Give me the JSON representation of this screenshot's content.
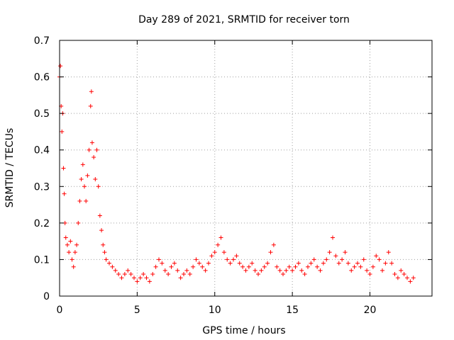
{
  "chart_data": {
    "type": "scatter",
    "title": "Day 289 of 2021, SRMTID for receiver torn",
    "xlabel": "GPS time / hours",
    "ylabel": "SRMTID / TECUs",
    "xlim": [
      0,
      24
    ],
    "ylim": [
      0,
      0.7
    ],
    "xticks": [
      0,
      5,
      10,
      15,
      20
    ],
    "yticks": [
      0,
      0.1,
      0.2,
      0.3,
      0.4,
      0.5,
      0.6,
      0.7
    ],
    "grid": true,
    "marker": "plus",
    "color": "#ff0000",
    "series": [
      {
        "name": "SRMTID",
        "x": [
          0.0,
          0.05,
          0.1,
          0.15,
          0.2,
          0.25,
          0.3,
          0.35,
          0.4,
          0.5,
          0.6,
          0.7,
          0.8,
          0.9,
          1.0,
          1.1,
          1.2,
          1.3,
          1.4,
          1.5,
          1.6,
          1.7,
          1.8,
          1.9,
          2.0,
          2.05,
          2.1,
          2.2,
          2.3,
          2.4,
          2.5,
          2.6,
          2.7,
          2.8,
          2.9,
          3.0,
          3.2,
          3.4,
          3.6,
          3.8,
          4.0,
          4.2,
          4.4,
          4.6,
          4.8,
          5.0,
          5.2,
          5.4,
          5.6,
          5.8,
          6.0,
          6.2,
          6.4,
          6.6,
          6.8,
          7.0,
          7.2,
          7.4,
          7.6,
          7.8,
          8.0,
          8.2,
          8.4,
          8.6,
          8.8,
          9.0,
          9.2,
          9.4,
          9.6,
          9.8,
          10.0,
          10.2,
          10.4,
          10.6,
          10.8,
          11.0,
          11.2,
          11.4,
          11.6,
          11.8,
          12.0,
          12.2,
          12.4,
          12.6,
          12.8,
          13.0,
          13.2,
          13.4,
          13.6,
          13.8,
          14.0,
          14.2,
          14.4,
          14.6,
          14.8,
          15.0,
          15.2,
          15.4,
          15.6,
          15.8,
          16.0,
          16.2,
          16.4,
          16.6,
          16.8,
          17.0,
          17.2,
          17.4,
          17.6,
          17.8,
          18.0,
          18.2,
          18.4,
          18.6,
          18.8,
          19.0,
          19.2,
          19.4,
          19.6,
          19.8,
          20.0,
          20.2,
          20.4,
          20.6,
          20.8,
          21.0,
          21.2,
          21.4,
          21.6,
          21.8,
          22.0,
          22.2,
          22.4,
          22.6,
          22.8
        ],
        "y": [
          0.6,
          0.63,
          0.52,
          0.45,
          0.5,
          0.35,
          0.28,
          0.2,
          0.16,
          0.14,
          0.12,
          0.15,
          0.1,
          0.08,
          0.12,
          0.14,
          0.2,
          0.26,
          0.32,
          0.36,
          0.3,
          0.26,
          0.33,
          0.4,
          0.52,
          0.56,
          0.42,
          0.38,
          0.32,
          0.4,
          0.3,
          0.22,
          0.18,
          0.14,
          0.12,
          0.1,
          0.09,
          0.08,
          0.07,
          0.06,
          0.05,
          0.06,
          0.07,
          0.06,
          0.05,
          0.04,
          0.05,
          0.06,
          0.05,
          0.04,
          0.06,
          0.08,
          0.1,
          0.09,
          0.07,
          0.06,
          0.08,
          0.09,
          0.07,
          0.05,
          0.06,
          0.07,
          0.06,
          0.08,
          0.1,
          0.09,
          0.08,
          0.07,
          0.09,
          0.11,
          0.12,
          0.14,
          0.16,
          0.12,
          0.1,
          0.09,
          0.1,
          0.11,
          0.09,
          0.08,
          0.07,
          0.08,
          0.09,
          0.07,
          0.06,
          0.07,
          0.08,
          0.09,
          0.12,
          0.14,
          0.08,
          0.07,
          0.06,
          0.07,
          0.08,
          0.07,
          0.08,
          0.09,
          0.07,
          0.06,
          0.08,
          0.09,
          0.1,
          0.08,
          0.07,
          0.09,
          0.1,
          0.12,
          0.16,
          0.11,
          0.09,
          0.1,
          0.12,
          0.09,
          0.07,
          0.08,
          0.09,
          0.08,
          0.1,
          0.07,
          0.06,
          0.08,
          0.11,
          0.1,
          0.07,
          0.09,
          0.12,
          0.09,
          0.06,
          0.05,
          0.07,
          0.06,
          0.05,
          0.04,
          0.05
        ]
      }
    ]
  }
}
